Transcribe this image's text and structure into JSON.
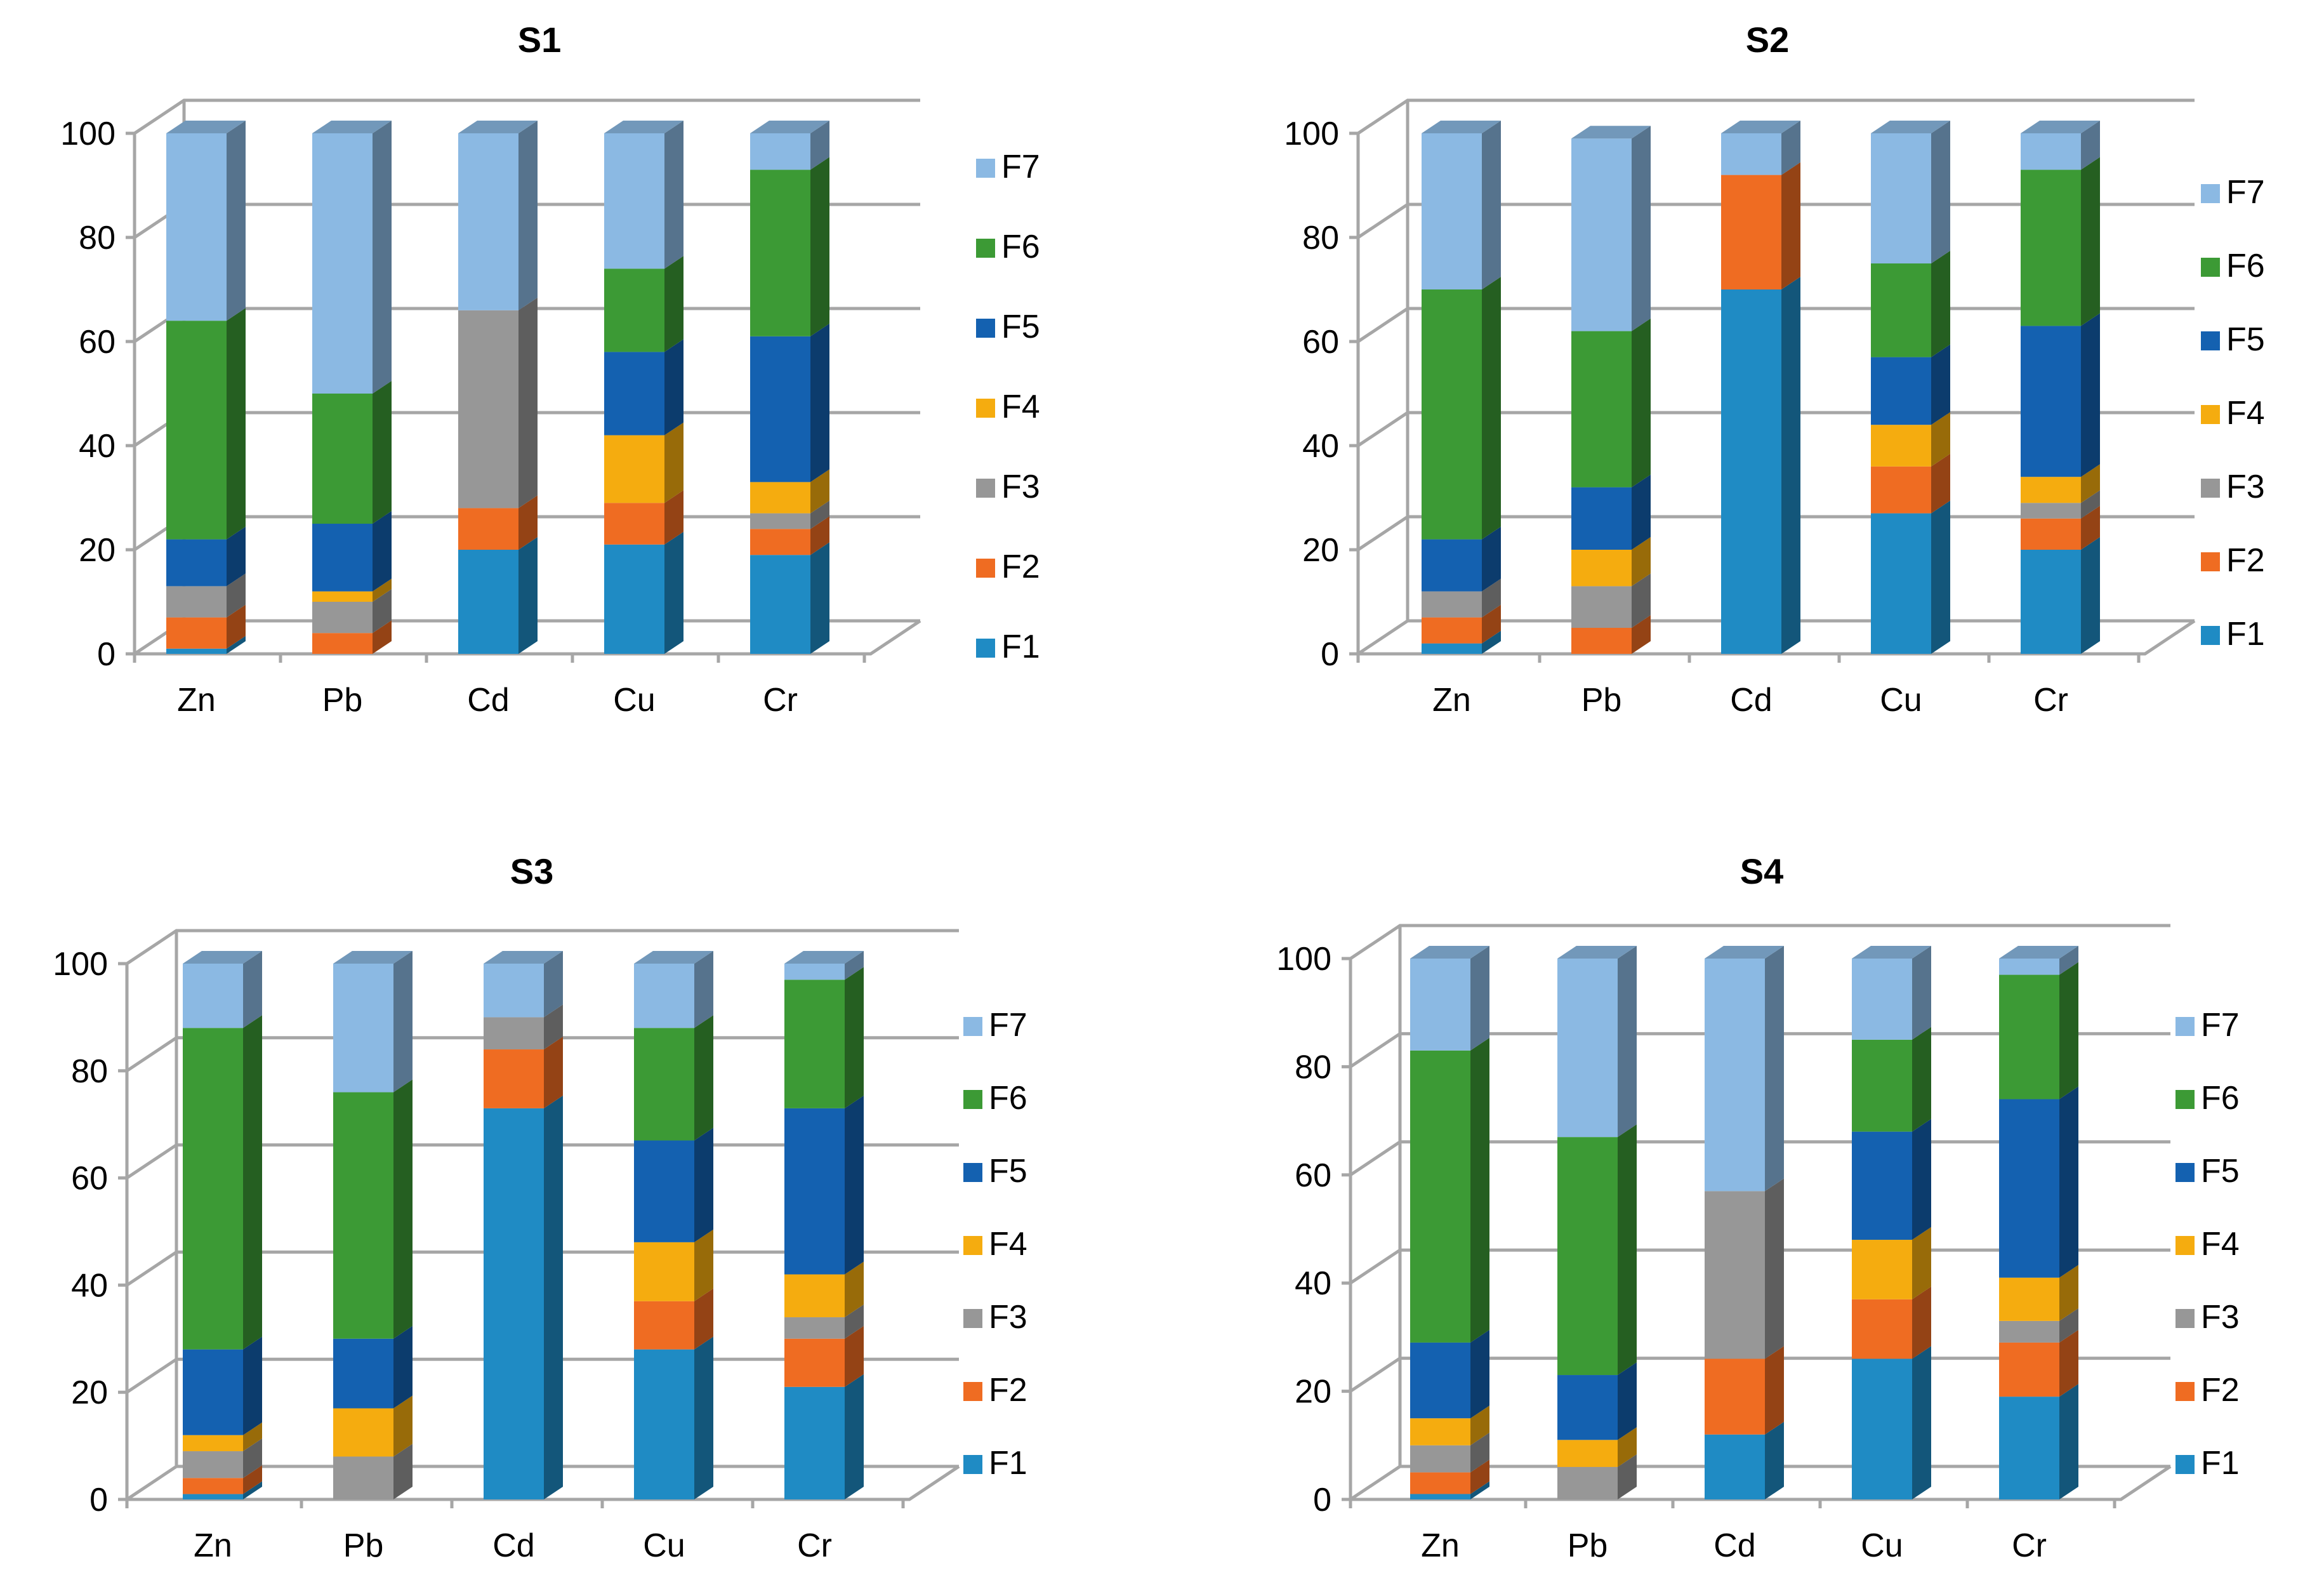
{
  "chart_data": [
    {
      "type": "bar",
      "stacked": true,
      "style": "3d-stacked-column",
      "title": "S1",
      "categories": [
        "Zn",
        "Pb",
        "Cd",
        "Cu",
        "Cr"
      ],
      "ylim": [
        0,
        100
      ],
      "yticks": [
        "0",
        "20",
        "40",
        "60",
        "80",
        "100"
      ],
      "xlabel": "",
      "ylabel": "",
      "grid": true,
      "legend_position": "right",
      "series": [
        {
          "name": "F1",
          "values": [
            1,
            0,
            20,
            21,
            19
          ]
        },
        {
          "name": "F2",
          "values": [
            6,
            4,
            8,
            8,
            5
          ]
        },
        {
          "name": "F3",
          "values": [
            6,
            6,
            38,
            0,
            3
          ]
        },
        {
          "name": "F4",
          "values": [
            0,
            2,
            0,
            13,
            6
          ]
        },
        {
          "name": "F5",
          "values": [
            9,
            13,
            0,
            16,
            28
          ]
        },
        {
          "name": "F6",
          "values": [
            42,
            25,
            0,
            16,
            32
          ]
        },
        {
          "name": "F7",
          "values": [
            36,
            50,
            34,
            26,
            7
          ]
        }
      ]
    },
    {
      "type": "bar",
      "stacked": true,
      "style": "3d-stacked-column",
      "title": "S2",
      "categories": [
        "Zn",
        "Pb",
        "Cd",
        "Cu",
        "Cr"
      ],
      "ylim": [
        0,
        100
      ],
      "yticks": [
        "0",
        "20",
        "40",
        "60",
        "80",
        "100"
      ],
      "xlabel": "",
      "ylabel": "",
      "grid": true,
      "legend_position": "right",
      "series": [
        {
          "name": "F1",
          "values": [
            2,
            0,
            70,
            27,
            20
          ]
        },
        {
          "name": "F2",
          "values": [
            5,
            5,
            22,
            9,
            6
          ]
        },
        {
          "name": "F3",
          "values": [
            5,
            8,
            0,
            0,
            3
          ]
        },
        {
          "name": "F4",
          "values": [
            0,
            7,
            0,
            8,
            5
          ]
        },
        {
          "name": "F5",
          "values": [
            10,
            12,
            0,
            13,
            29
          ]
        },
        {
          "name": "F6",
          "values": [
            48,
            30,
            0,
            18,
            30
          ]
        },
        {
          "name": "F7",
          "values": [
            30,
            37,
            8,
            25,
            7
          ]
        }
      ]
    },
    {
      "type": "bar",
      "stacked": true,
      "style": "3d-stacked-column",
      "title": "S3",
      "categories": [
        "Zn",
        "Pb",
        "Cd",
        "Cu",
        "Cr"
      ],
      "ylim": [
        0,
        100
      ],
      "yticks": [
        "0",
        "20",
        "40",
        "60",
        "80",
        "100"
      ],
      "xlabel": "",
      "ylabel": "",
      "grid": true,
      "legend_position": "right",
      "series": [
        {
          "name": "F1",
          "values": [
            1,
            0,
            73,
            28,
            21
          ]
        },
        {
          "name": "F2",
          "values": [
            3,
            0,
            11,
            9,
            9
          ]
        },
        {
          "name": "F3",
          "values": [
            5,
            8,
            6,
            0,
            4
          ]
        },
        {
          "name": "F4",
          "values": [
            3,
            9,
            0,
            11,
            8
          ]
        },
        {
          "name": "F5",
          "values": [
            16,
            13,
            0,
            19,
            31
          ]
        },
        {
          "name": "F6",
          "values": [
            60,
            46,
            0,
            21,
            24
          ]
        },
        {
          "name": "F7",
          "values": [
            12,
            24,
            10,
            12,
            3
          ]
        }
      ]
    },
    {
      "type": "bar",
      "stacked": true,
      "style": "3d-stacked-column",
      "title": "S4",
      "categories": [
        "Zn",
        "Pb",
        "Cd",
        "Cu",
        "Cr"
      ],
      "ylim": [
        0,
        100
      ],
      "yticks": [
        "0",
        "20",
        "40",
        "60",
        "80",
        "100"
      ],
      "xlabel": "",
      "ylabel": "",
      "grid": true,
      "legend_position": "right",
      "series": [
        {
          "name": "F1",
          "values": [
            1,
            0,
            12,
            26,
            19
          ]
        },
        {
          "name": "F2",
          "values": [
            4,
            0,
            14,
            11,
            10
          ]
        },
        {
          "name": "F3",
          "values": [
            5,
            6,
            31,
            0,
            4
          ]
        },
        {
          "name": "F4",
          "values": [
            5,
            5,
            0,
            11,
            8
          ]
        },
        {
          "name": "F5",
          "values": [
            14,
            12,
            0,
            20,
            33
          ]
        },
        {
          "name": "F6",
          "values": [
            54,
            44,
            0,
            17,
            23
          ]
        },
        {
          "name": "F7",
          "values": [
            17,
            33,
            43,
            15,
            3
          ]
        }
      ]
    }
  ],
  "series_colors": {
    "F1": "#1f8bc4",
    "F2": "#ef6c22",
    "F3": "#979797",
    "F4": "#f5ac0f",
    "F5": "#1461b0",
    "F6": "#3c9a35",
    "F7": "#8bb9e3"
  },
  "axis_color": "#a6a6a6"
}
